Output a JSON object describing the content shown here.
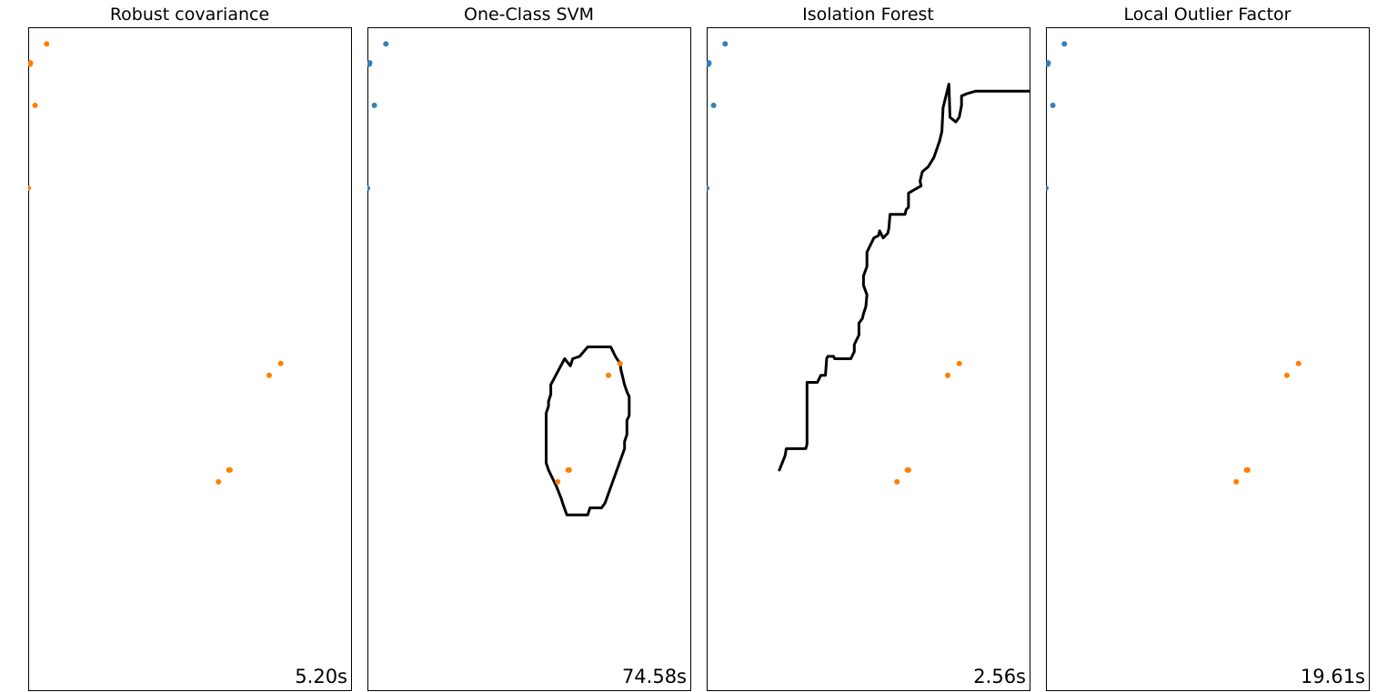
{
  "chart_data": [
    {
      "type": "scatter",
      "title": "Robust covariance",
      "timing": "5.20s",
      "xlim": [
        -7,
        7
      ],
      "ylim": [
        -7,
        7
      ],
      "grid": false,
      "series": [
        {
          "color": "#ff7f00",
          "points": [
            [
              -6.2,
              6.65
            ],
            [
              -6.9,
              6.25
            ],
            [
              -6.92,
              6.22
            ],
            [
              -6.7,
              5.35
            ],
            [
              -7.0,
              3.6
            ],
            [
              3.45,
              -0.35
            ],
            [
              3.95,
              -0.1
            ],
            [
              1.25,
              -2.6
            ],
            [
              1.75,
              -2.35
            ],
            [
              1.7,
              -2.35
            ]
          ]
        }
      ],
      "decision_boundary": []
    },
    {
      "type": "scatter",
      "title": "One-Class SVM",
      "timing": "74.58s",
      "xlim": [
        -7,
        7
      ],
      "ylim": [
        -7,
        7
      ],
      "grid": false,
      "series": [
        {
          "color": "#377eb8",
          "points": [
            [
              -6.2,
              6.65
            ],
            [
              -6.9,
              6.25
            ],
            [
              -6.92,
              6.22
            ],
            [
              -6.7,
              5.35
            ],
            [
              -7.0,
              3.6
            ]
          ]
        },
        {
          "color": "#ff7f00",
          "points": [
            [
              3.45,
              -0.35
            ],
            [
              3.95,
              -0.1
            ],
            [
              1.25,
              -2.6
            ],
            [
              1.75,
              -2.35
            ],
            [
              1.7,
              -2.35
            ]
          ]
        }
      ],
      "decision_boundary": [
        [
          2.55,
          0.25
        ],
        [
          3.55,
          0.25
        ],
        [
          3.75,
          0.05
        ],
        [
          3.95,
          -0.1
        ],
        [
          4.0,
          -0.25
        ],
        [
          4.05,
          -0.35
        ],
        [
          4.15,
          -0.55
        ],
        [
          4.25,
          -0.7
        ],
        [
          4.35,
          -0.8
        ],
        [
          4.35,
          -1.2
        ],
        [
          4.25,
          -1.3
        ],
        [
          4.25,
          -1.6
        ],
        [
          4.15,
          -1.75
        ],
        [
          4.15,
          -1.9
        ],
        [
          3.3,
          -3.05
        ],
        [
          3.15,
          -3.15
        ],
        [
          2.65,
          -3.15
        ],
        [
          2.55,
          -3.3
        ],
        [
          1.65,
          -3.3
        ],
        [
          1.5,
          -3.1
        ],
        [
          1.4,
          -2.95
        ],
        [
          1.2,
          -2.7
        ],
        [
          0.85,
          -2.35
        ],
        [
          0.75,
          -2.2
        ],
        [
          0.75,
          -1.15
        ],
        [
          0.85,
          -1.0
        ],
        [
          0.85,
          -0.9
        ],
        [
          0.95,
          -0.75
        ],
        [
          0.95,
          -0.55
        ],
        [
          1.55,
          0.0
        ],
        [
          1.8,
          -0.15
        ],
        [
          1.9,
          0.0
        ],
        [
          2.2,
          0.05
        ],
        [
          2.55,
          0.25
        ]
      ]
    },
    {
      "type": "scatter",
      "title": "Isolation Forest",
      "timing": "2.56s",
      "xlim": [
        -7,
        7
      ],
      "ylim": [
        -7,
        7
      ],
      "grid": false,
      "series": [
        {
          "color": "#377eb8",
          "points": [
            [
              -6.2,
              6.65
            ],
            [
              -6.9,
              6.25
            ],
            [
              -6.92,
              6.22
            ],
            [
              -6.7,
              5.35
            ],
            [
              -7.0,
              3.6
            ]
          ]
        },
        {
          "color": "#ff7f00",
          "points": [
            [
              3.45,
              -0.35
            ],
            [
              3.95,
              -0.1
            ],
            [
              1.25,
              -2.6
            ],
            [
              1.75,
              -2.35
            ],
            [
              1.7,
              -2.35
            ]
          ]
        }
      ],
      "decision_boundary": [
        [
          -3.85,
          -2.35
        ],
        [
          -3.6,
          -2.05
        ],
        [
          -3.55,
          -1.9
        ],
        [
          -2.7,
          -1.9
        ],
        [
          -2.65,
          -1.8
        ],
        [
          -2.65,
          -0.5
        ],
        [
          -2.2,
          -0.5
        ],
        [
          -2.05,
          -0.35
        ],
        [
          -1.85,
          -0.35
        ],
        [
          -1.8,
          0.0
        ],
        [
          -1.75,
          0.05
        ],
        [
          -1.5,
          0.05
        ],
        [
          -1.45,
          0.0
        ],
        [
          -0.75,
          0.0
        ],
        [
          -0.6,
          0.15
        ],
        [
          -0.6,
          0.3
        ],
        [
          -0.4,
          0.5
        ],
        [
          -0.4,
          0.75
        ],
        [
          -0.25,
          0.85
        ],
        [
          -0.2,
          0.95
        ],
        [
          -0.1,
          1.1
        ],
        [
          -0.05,
          1.35
        ],
        [
          -0.2,
          1.55
        ],
        [
          -0.2,
          1.75
        ],
        [
          -0.05,
          1.95
        ],
        [
          -0.05,
          2.25
        ],
        [
          0.15,
          2.45
        ],
        [
          0.25,
          2.55
        ],
        [
          0.45,
          2.6
        ],
        [
          0.5,
          2.7
        ],
        [
          0.65,
          2.55
        ],
        [
          0.85,
          2.65
        ],
        [
          0.9,
          2.75
        ],
        [
          0.95,
          3.05
        ],
        [
          1.6,
          3.05
        ],
        [
          1.65,
          3.15
        ],
        [
          1.75,
          3.2
        ],
        [
          1.75,
          3.5
        ],
        [
          2.3,
          3.65
        ],
        [
          2.25,
          3.75
        ],
        [
          2.35,
          3.95
        ],
        [
          2.6,
          4.05
        ],
        [
          2.85,
          4.25
        ],
        [
          3.1,
          4.6
        ],
        [
          3.2,
          4.8
        ],
        [
          3.25,
          5.3
        ],
        [
          3.5,
          5.8
        ],
        [
          3.55,
          5.1
        ],
        [
          3.8,
          5.0
        ],
        [
          3.95,
          5.1
        ],
        [
          4.05,
          5.35
        ],
        [
          4.05,
          5.55
        ],
        [
          4.3,
          5.6
        ],
        [
          4.65,
          5.65
        ],
        [
          7.0,
          5.65
        ]
      ]
    },
    {
      "type": "scatter",
      "title": "Local Outlier Factor",
      "timing": "19.61s",
      "xlim": [
        -7,
        7
      ],
      "ylim": [
        -7,
        7
      ],
      "grid": false,
      "series": [
        {
          "color": "#377eb8",
          "points": [
            [
              -6.2,
              6.65
            ],
            [
              -6.9,
              6.25
            ],
            [
              -6.92,
              6.22
            ],
            [
              -6.7,
              5.35
            ],
            [
              -7.0,
              3.6
            ]
          ]
        },
        {
          "color": "#ff7f00",
          "points": [
            [
              3.45,
              -0.35
            ],
            [
              3.95,
              -0.1
            ],
            [
              1.25,
              -2.6
            ],
            [
              1.75,
              -2.35
            ],
            [
              1.7,
              -2.35
            ]
          ]
        }
      ],
      "decision_boundary": []
    }
  ]
}
